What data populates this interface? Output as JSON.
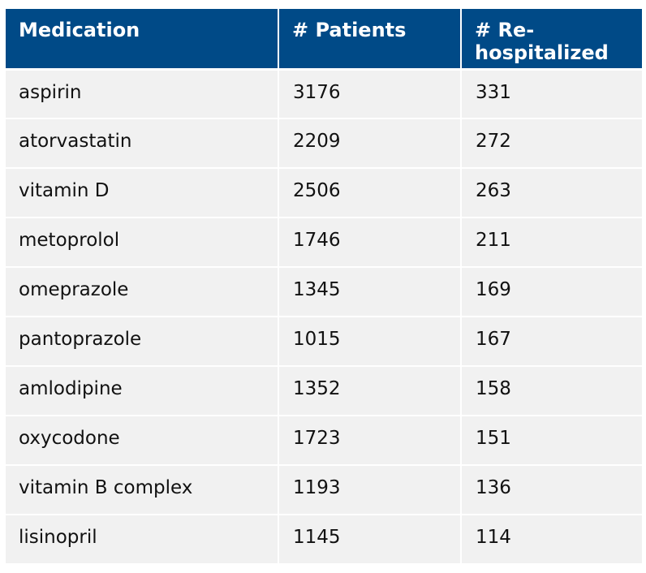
{
  "colors": {
    "header_bg": "#004a87",
    "header_text": "#ffffff",
    "row_bg": "#f1f1f1",
    "row_text": "#111111"
  },
  "chart_data": {
    "type": "table",
    "columns": [
      "Medication",
      "# Patients",
      "# Re-hospitalized"
    ],
    "rows": [
      {
        "medication": "aspirin",
        "patients": "3176",
        "rehospitalized": "331"
      },
      {
        "medication": "atorvastatin",
        "patients": "2209",
        "rehospitalized": "272"
      },
      {
        "medication": "vitamin D",
        "patients": "2506",
        "rehospitalized": "263"
      },
      {
        "medication": "metoprolol",
        "patients": "1746",
        "rehospitalized": "211"
      },
      {
        "medication": "omeprazole",
        "patients": "1345",
        "rehospitalized": "169"
      },
      {
        "medication": "pantoprazole",
        "patients": "1015",
        "rehospitalized": "167"
      },
      {
        "medication": "amlodipine",
        "patients": "1352",
        "rehospitalized": "158"
      },
      {
        "medication": "oxycodone",
        "patients": "1723",
        "rehospitalized": "151"
      },
      {
        "medication": "vitamin B complex",
        "patients": "1193",
        "rehospitalized": "136"
      },
      {
        "medication": "lisinopril",
        "patients": "1145",
        "rehospitalized": "114"
      }
    ]
  }
}
